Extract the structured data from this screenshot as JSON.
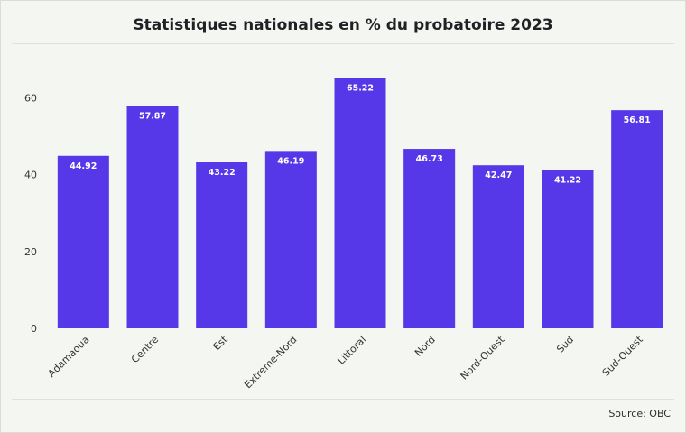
{
  "chart_data": {
    "type": "bar",
    "title": "Statistiques nationales en % du probatoire 2023",
    "xlabel": "",
    "ylabel": "",
    "categories": [
      "Adamaoua",
      "Centre",
      "Est",
      "Extreme-Nord",
      "Littoral",
      "Nord",
      "Nord-Ouest",
      "Sud",
      "Sud-Ouest"
    ],
    "values": [
      44.92,
      57.87,
      43.22,
      46.19,
      65.22,
      46.73,
      42.47,
      41.22,
      56.81
    ],
    "value_labels": [
      "44.92",
      "57.87",
      "43.22",
      "46.19",
      "65.22",
      "46.73",
      "42.47",
      "41.22",
      "56.81"
    ],
    "ylim": [
      0,
      70
    ],
    "yticks": [
      0,
      20,
      40,
      60
    ],
    "ytick_labels": [
      "0",
      "20",
      "40",
      "60"
    ],
    "bar_color": "#5638e8",
    "grid": false,
    "legend": "none"
  },
  "source": "Source: OBC"
}
